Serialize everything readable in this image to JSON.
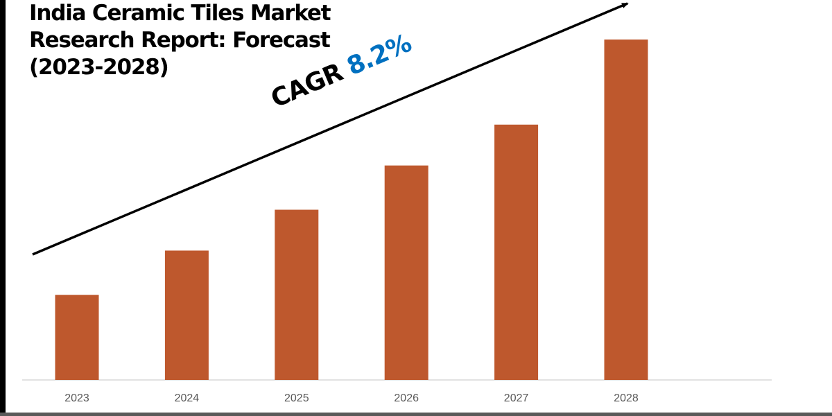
{
  "title": "India Ceramic Tiles Market\nResearch Report: Forecast\n(2023-2028)",
  "annotation": {
    "label": "CAGR",
    "value": "8.2%",
    "value_color": "#0070C0"
  },
  "chart_data": {
    "type": "bar",
    "title": "India Ceramic Tiles Market Research Report: Forecast (2023-2028)",
    "categories": [
      "2023",
      "2024",
      "2025",
      "2026",
      "2027",
      "2028"
    ],
    "values": [
      0.25,
      0.38,
      0.5,
      0.63,
      0.75,
      1.0
    ],
    "value_note_relative": true,
    "bar_color": "#BE582D",
    "grid": false,
    "legend": "none",
    "ylim": [
      0,
      1
    ]
  }
}
